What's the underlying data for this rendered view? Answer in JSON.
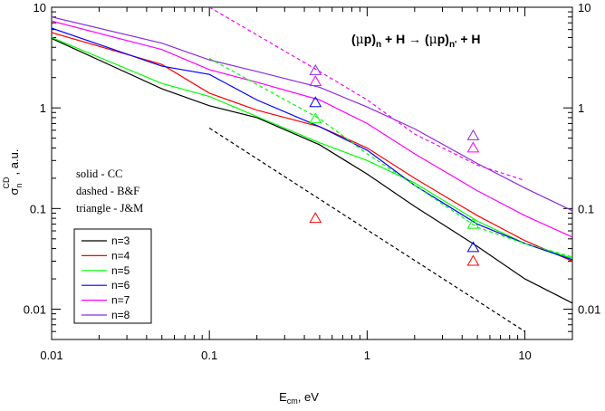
{
  "chart_data": {
    "type": "line",
    "x_scale": "log",
    "y_scale": "log",
    "xlim": [
      0.01,
      20
    ],
    "ylim": [
      0.005,
      10
    ],
    "x_ticks": [
      {
        "value": 0.01,
        "label": "0.01"
      },
      {
        "value": 0.1,
        "label": "0.1"
      },
      {
        "value": 1,
        "label": "1"
      },
      {
        "value": 10,
        "label": "10"
      }
    ],
    "y_ticks": [
      {
        "value": 0.01,
        "label": "0.01"
      },
      {
        "value": 0.1,
        "label": "0.1"
      },
      {
        "value": 1,
        "label": "1"
      },
      {
        "value": 10,
        "label": "10"
      }
    ],
    "xlabel": {
      "main": "E",
      "sub": "cm",
      "rest": ", eV"
    },
    "ylabel": {
      "main": "σ",
      "sub": "n",
      "sup": "CD",
      "rest": ", a.u."
    },
    "reaction": {
      "open": "(",
      "mu": "μ",
      "p": "p)",
      "n": "n",
      "mid": " + H  →  (",
      "mu2": "μ",
      "p2": "p)",
      "n2": "n'",
      "end": " + H"
    },
    "annotations": [
      "solid - CC",
      "dashed - B&F",
      "triangle - J&M"
    ],
    "legend_position": "bottom-left",
    "series": [
      {
        "name": "n=3",
        "color": "#000000",
        "style": "solid",
        "points": [
          [
            0.01,
            4.9
          ],
          [
            0.05,
            1.55
          ],
          [
            0.1,
            1.05
          ],
          [
            0.2,
            0.8
          ],
          [
            0.5,
            0.43
          ],
          [
            1,
            0.22
          ],
          [
            2,
            0.105
          ],
          [
            5,
            0.042
          ],
          [
            10,
            0.02
          ],
          [
            20,
            0.0115
          ]
        ]
      },
      {
        "name": "n=4",
        "color": "#ff0000",
        "style": "solid",
        "points": [
          [
            0.01,
            5.6
          ],
          [
            0.05,
            2.7
          ],
          [
            0.1,
            1.4
          ],
          [
            0.2,
            0.95
          ],
          [
            0.5,
            0.65
          ],
          [
            1,
            0.4
          ],
          [
            2,
            0.2
          ],
          [
            5,
            0.085
          ],
          [
            10,
            0.048
          ],
          [
            20,
            0.03
          ]
        ]
      },
      {
        "name": "n=5",
        "color": "#00ff00",
        "style": "solid",
        "points": [
          [
            0.01,
            5.0
          ],
          [
            0.05,
            1.75
          ],
          [
            0.1,
            1.3
          ],
          [
            0.2,
            0.82
          ],
          [
            0.5,
            0.45
          ],
          [
            1,
            0.3
          ],
          [
            2,
            0.18
          ],
          [
            5,
            0.075
          ],
          [
            10,
            0.045
          ],
          [
            20,
            0.032
          ]
        ]
      },
      {
        "name": "n=6",
        "color": "#0000ff",
        "style": "solid",
        "points": [
          [
            0.01,
            6.2
          ],
          [
            0.05,
            2.6
          ],
          [
            0.1,
            2.15
          ],
          [
            0.2,
            1.2
          ],
          [
            0.5,
            0.65
          ],
          [
            1,
            0.38
          ],
          [
            2,
            0.17
          ],
          [
            5,
            0.07
          ],
          [
            10,
            0.045
          ],
          [
            20,
            0.031
          ]
        ]
      },
      {
        "name": "n=7",
        "color": "#ff00ff",
        "style": "solid",
        "points": [
          [
            0.01,
            7.3
          ],
          [
            0.05,
            3.8
          ],
          [
            0.1,
            2.4
          ],
          [
            0.2,
            1.8
          ],
          [
            0.5,
            1.2
          ],
          [
            1,
            0.7
          ],
          [
            2,
            0.35
          ],
          [
            5,
            0.15
          ],
          [
            10,
            0.085
          ],
          [
            20,
            0.052
          ]
        ]
      },
      {
        "name": "n=8",
        "color": "#8a2be2",
        "style": "solid",
        "points": [
          [
            0.01,
            8.0
          ],
          [
            0.05,
            4.4
          ],
          [
            0.1,
            3.0
          ],
          [
            0.2,
            2.3
          ],
          [
            0.5,
            1.6
          ],
          [
            1,
            1.02
          ],
          [
            2,
            0.62
          ],
          [
            5,
            0.28
          ],
          [
            10,
            0.16
          ],
          [
            20,
            0.095
          ]
        ]
      },
      {
        "name": "B&F n=3",
        "color": "#000000",
        "style": "dashed",
        "points": [
          [
            0.1,
            0.63
          ],
          [
            10,
            0.006
          ]
        ]
      },
      {
        "name": "B&F n=5",
        "color": "#00ff00",
        "style": "dashed",
        "points": [
          [
            0.1,
            3.1
          ],
          [
            0.5,
            0.78
          ],
          [
            1,
            0.35
          ],
          [
            2,
            0.17
          ],
          [
            5,
            0.065
          ],
          [
            10,
            0.045
          ],
          [
            20,
            0.033
          ]
        ]
      },
      {
        "name": "B&F n=7",
        "color": "#ff00ff",
        "style": "dashed",
        "points": [
          [
            0.1,
            10
          ],
          [
            0.5,
            2.3
          ],
          [
            1,
            1.2
          ],
          [
            2,
            0.55
          ],
          [
            5,
            0.27
          ],
          [
            10,
            0.19
          ]
        ]
      }
    ],
    "markers": [
      {
        "series": "n=4",
        "color": "#ff0000",
        "x": 0.47,
        "y": 0.08
      },
      {
        "series": "n=5",
        "color": "#00ff00",
        "x": 0.47,
        "y": 0.78
      },
      {
        "series": "n=6",
        "color": "#0000ff",
        "x": 0.47,
        "y": 1.13
      },
      {
        "series": "n=7",
        "color": "#ff00ff",
        "x": 0.47,
        "y": 1.83
      },
      {
        "series": "n=8",
        "color": "#8a2be2",
        "x": 0.47,
        "y": 2.35
      },
      {
        "series": "n=4",
        "color": "#ff0000",
        "x": 4.7,
        "y": 0.03
      },
      {
        "series": "n=5",
        "color": "#00ff00",
        "x": 4.7,
        "y": 0.07
      },
      {
        "series": "n=6",
        "color": "#0000ff",
        "x": 4.7,
        "y": 0.041
      },
      {
        "series": "n=7",
        "color": "#ff00ff",
        "x": 4.7,
        "y": 0.4
      },
      {
        "series": "n=8",
        "color": "#8a2be2",
        "x": 4.7,
        "y": 0.53
      }
    ]
  }
}
